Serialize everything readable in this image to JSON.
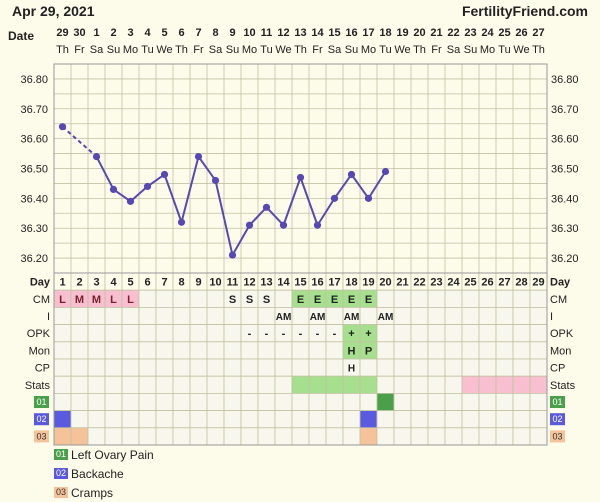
{
  "header": {
    "date": "Apr 29, 2021",
    "brand": "FertilityFriend.com"
  },
  "colors": {
    "background": "#fdfbea",
    "grid": "#c2c2a2",
    "line": "#5748b5",
    "cm_fertile": "#a6e08e",
    "menses": "#f7bfcf",
    "legend_01": "#4aa04a",
    "legend_02": "#5a5ae0",
    "legend_03": "#f5c39a"
  },
  "chart_data": {
    "type": "line",
    "title": "",
    "date_label": "Date",
    "dates": [
      "29",
      "30",
      "1",
      "2",
      "3",
      "4",
      "5",
      "6",
      "7",
      "8",
      "9",
      "10",
      "11",
      "12",
      "13",
      "14",
      "15",
      "16",
      "17",
      "18",
      "19",
      "20",
      "21",
      "22",
      "23",
      "24",
      "25",
      "26",
      "27"
    ],
    "weekdays": [
      "Th",
      "Fr",
      "Sa",
      "Su",
      "Mo",
      "Tu",
      "We",
      "Th",
      "Fr",
      "Sa",
      "Su",
      "Mo",
      "Tu",
      "We",
      "Th",
      "Fr",
      "Sa",
      "Su",
      "Mo",
      "Tu",
      "We",
      "Th",
      "Fr",
      "Sa",
      "Su",
      "Mo",
      "Tu",
      "We",
      "Th"
    ],
    "y_ticks": [
      "36.80",
      "36.70",
      "36.60",
      "36.50",
      "36.40",
      "36.30",
      "36.20"
    ],
    "ylim": [
      36.15,
      36.85
    ],
    "temps": [
      36.64,
      null,
      36.54,
      36.43,
      36.39,
      36.44,
      36.48,
      36.32,
      36.54,
      36.46,
      36.21,
      36.31,
      36.37,
      36.31,
      36.47,
      36.31,
      36.4,
      36.48,
      36.4,
      36.49
    ],
    "dashed_segment_days": [
      1,
      3
    ]
  },
  "rows": {
    "labels": [
      "Day",
      "CM",
      "I",
      "OPK",
      "Mon",
      "CP",
      "Stats",
      "01",
      "02",
      "03"
    ],
    "day_numbers": [
      "1",
      "2",
      "3",
      "4",
      "5",
      "6",
      "7",
      "8",
      "9",
      "10",
      "11",
      "12",
      "13",
      "14",
      "15",
      "16",
      "17",
      "18",
      "19",
      "20",
      "21",
      "22",
      "23",
      "24",
      "25",
      "26",
      "27",
      "28",
      "29"
    ],
    "cm": {
      "1": "L",
      "2": "M",
      "3": "M",
      "4": "L",
      "5": "L",
      "11": "S",
      "12": "S",
      "13": "S",
      "15": "E",
      "16": "E",
      "17": "E",
      "18": "E",
      "19": "E"
    },
    "intercourse": {
      "14": "AM",
      "16": "AM",
      "18": "AM",
      "20": "AM"
    },
    "opk": {
      "12": "-",
      "13": "-",
      "14": "-",
      "15": "-",
      "16": "-",
      "17": "-",
      "18": "+",
      "19": "+"
    },
    "monitor": {
      "18": "H",
      "19": "P"
    },
    "cp": {
      "18": "H"
    },
    "menses_days": [
      1,
      2,
      3,
      4,
      5
    ],
    "fertile_cm_days": [
      15,
      16,
      17,
      18,
      19
    ],
    "stats_fertile_days": [
      15,
      16,
      17,
      18,
      19
    ],
    "stats_pink_days": [
      25,
      26,
      27,
      28,
      29
    ],
    "sym01_days": [
      20
    ],
    "sym02_days": [
      1,
      19
    ],
    "sym03_days": [
      1,
      2,
      19
    ]
  },
  "legend": [
    {
      "code": "01",
      "label": "Left Ovary Pain"
    },
    {
      "code": "02",
      "label": "Backache"
    },
    {
      "code": "03",
      "label": "Cramps"
    }
  ]
}
